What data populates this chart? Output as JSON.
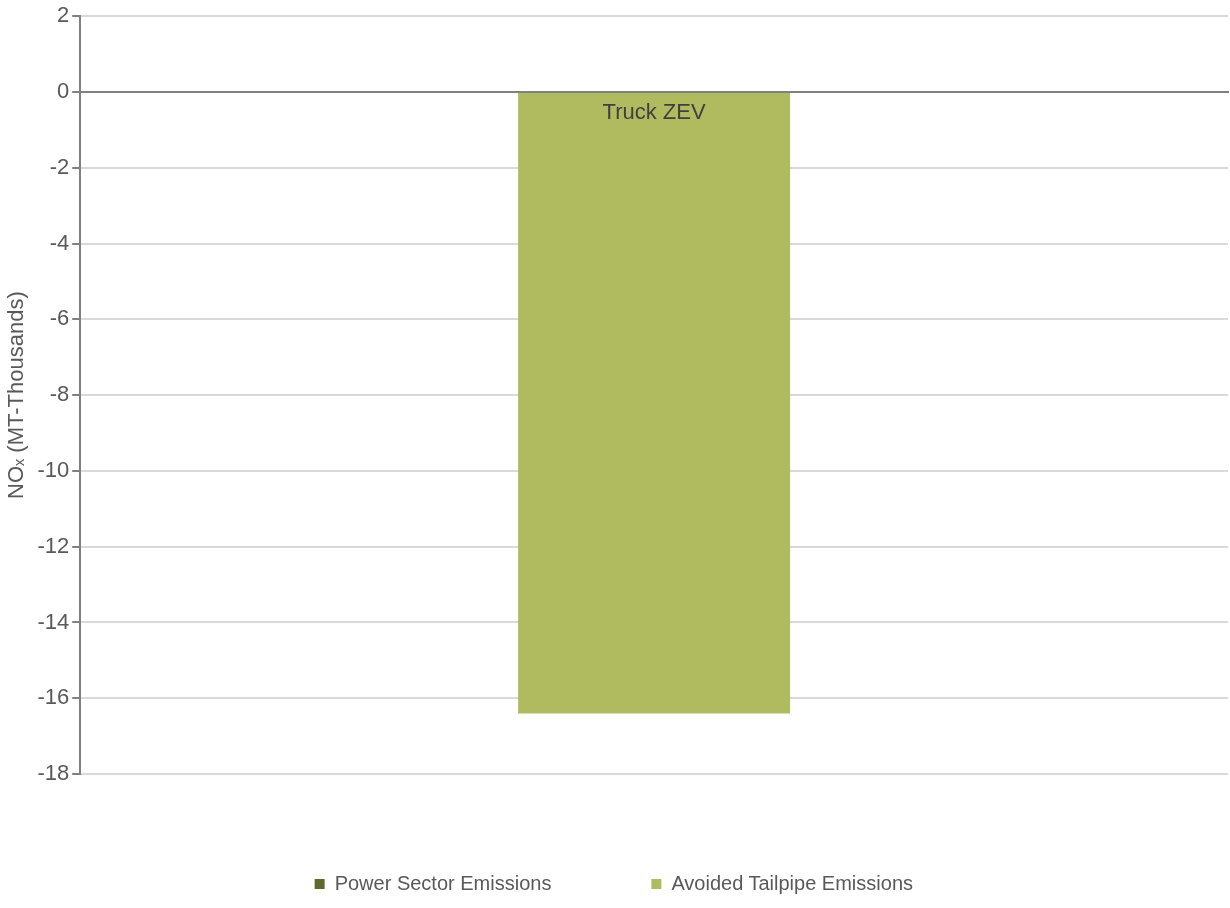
{
  "chart_data": {
    "type": "bar",
    "stacked": true,
    "ylabel": "NOₓ (MT-Thousands)",
    "categories": [
      "Truck ZEV"
    ],
    "series": [
      {
        "name": "Power Sector Emissions",
        "color": "#5f6b2d",
        "values": [
          0
        ]
      },
      {
        "name": "Avoided Tailpipe Emissions",
        "color": "#afbb5e",
        "values": [
          -16.4
        ]
      }
    ],
    "ylim": [
      -18,
      2
    ],
    "yticks": [
      -18,
      -16,
      -14,
      -12,
      -10,
      -8,
      -6,
      -4,
      -2,
      0,
      2
    ],
    "grid": "y",
    "legend": "bottom"
  }
}
